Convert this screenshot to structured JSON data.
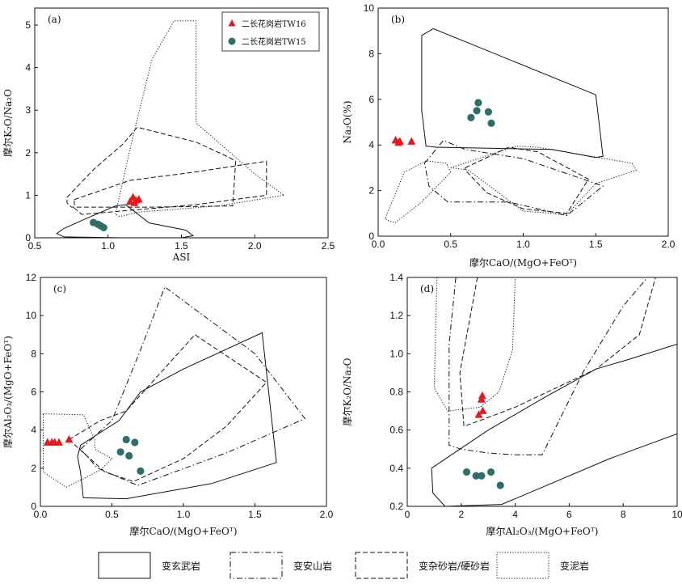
{
  "chart_data": [
    {
      "type": "scatter",
      "panel": "(a)",
      "xlabel": "ASI",
      "ylabel": "摩尔K₂O/Na₂O",
      "xlim": [
        0.5,
        2.5
      ],
      "ylim": [
        0,
        5.4
      ],
      "xticks": [
        0.5,
        1.0,
        1.5,
        2.0,
        2.5
      ],
      "xtick_labels": [
        "0.5",
        "1.0",
        "1.5",
        "2.0",
        "2.5"
      ],
      "yticks": [
        0,
        1,
        2,
        3,
        4,
        5
      ],
      "ytick_labels": [
        "0",
        "1",
        "2",
        "3",
        "4",
        "5"
      ],
      "legend": [
        {
          "label": "二长花岗岩TW16",
          "marker": "triangle",
          "color": "#e8161d"
        },
        {
          "label": "二长花岗岩TW15",
          "marker": "circle",
          "color": "#2e6f6b"
        }
      ],
      "legend_position": "top-right",
      "series": [
        {
          "name": "二长花岗岩TW16",
          "marker": "triangle",
          "points": [
            [
              1.15,
              0.85
            ],
            [
              1.17,
              0.95
            ],
            [
              1.19,
              0.88
            ],
            [
              1.21,
              0.9
            ],
            [
              1.18,
              0.82
            ]
          ]
        },
        {
          "name": "二长花岗岩TW15",
          "marker": "circle",
          "points": [
            [
              0.9,
              0.36
            ],
            [
              0.93,
              0.32
            ],
            [
              0.95,
              0.28
            ],
            [
              0.97,
              0.24
            ]
          ]
        }
      ],
      "fields": [
        {
          "style": "solid",
          "points": [
            [
              0.65,
              0.1
            ],
            [
              0.7,
              0.22
            ],
            [
              0.85,
              0.45
            ],
            [
              1.05,
              0.75
            ],
            [
              1.12,
              0.78
            ],
            [
              1.28,
              0.35
            ],
            [
              1.53,
              0.18
            ],
            [
              1.58,
              0.05
            ],
            [
              1.5,
              0.0
            ],
            [
              1.1,
              0.0
            ],
            [
              0.7,
              0.02
            ]
          ]
        },
        {
          "style": "dashed",
          "points": [
            [
              0.72,
              0.95
            ],
            [
              0.9,
              1.6
            ],
            [
              1.1,
              2.2
            ],
            [
              1.2,
              2.6
            ],
            [
              1.6,
              2.25
            ],
            [
              1.82,
              1.9
            ],
            [
              1.87,
              1.8
            ],
            [
              1.85,
              0.75
            ],
            [
              1.3,
              0.72
            ],
            [
              0.75,
              0.72
            ],
            [
              0.72,
              0.82
            ]
          ]
        },
        {
          "style": "dashed",
          "points": [
            [
              0.77,
              0.9
            ],
            [
              1.15,
              1.35
            ],
            [
              1.6,
              1.55
            ],
            [
              2.08,
              1.8
            ],
            [
              2.08,
              1.0
            ],
            [
              1.6,
              0.78
            ],
            [
              0.82,
              0.55
            ],
            [
              0.77,
              0.7
            ]
          ]
        },
        {
          "style": "dotted",
          "points": [
            [
              1.05,
              0.55
            ],
            [
              1.15,
              2.1
            ],
            [
              1.3,
              4.2
            ],
            [
              1.45,
              5.1
            ],
            [
              1.6,
              5.1
            ],
            [
              1.6,
              2.7
            ],
            [
              2.0,
              1.5
            ],
            [
              2.2,
              1.0
            ],
            [
              1.75,
              0.75
            ],
            [
              1.2,
              0.6
            ],
            [
              1.08,
              0.5
            ]
          ]
        }
      ]
    },
    {
      "type": "scatter",
      "panel": "(b)",
      "xlabel": "摩尔CaO/(MgO+FeOᵀ)",
      "ylabel": "Na₂O(%)",
      "xlim": [
        0,
        2.0
      ],
      "ylim": [
        0,
        10
      ],
      "xticks": [
        0,
        0.5,
        1.0,
        1.5,
        2.0
      ],
      "xtick_labels": [
        "0.0",
        "0.5",
        "1.0",
        "1.5",
        "2.0"
      ],
      "yticks": [
        0,
        2,
        4,
        6,
        8,
        10
      ],
      "ytick_labels": [
        "0",
        "2",
        "4",
        "6",
        "8",
        "10"
      ],
      "series": [
        {
          "name": "二长花岗岩TW16",
          "marker": "triangle",
          "points": [
            [
              0.12,
              4.2
            ],
            [
              0.14,
              4.1
            ],
            [
              0.15,
              4.15
            ],
            [
              0.23,
              4.15
            ]
          ]
        },
        {
          "name": "二长花岗岩TW15",
          "marker": "circle",
          "points": [
            [
              0.64,
              5.2
            ],
            [
              0.68,
              5.5
            ],
            [
              0.69,
              5.85
            ],
            [
              0.76,
              5.45
            ],
            [
              0.78,
              4.95
            ]
          ]
        }
      ],
      "fields": [
        {
          "style": "solid",
          "points": [
            [
              0.3,
              8.8
            ],
            [
              0.38,
              9.1
            ],
            [
              1.5,
              6.2
            ],
            [
              1.55,
              3.5
            ],
            [
              1.5,
              3.45
            ],
            [
              1.2,
              3.8
            ],
            [
              0.4,
              3.9
            ],
            [
              0.33,
              3.95
            ],
            [
              0.3,
              5.5
            ]
          ]
        },
        {
          "style": "dashdot",
          "points": [
            [
              0.32,
              3.2
            ],
            [
              0.45,
              4.2
            ],
            [
              0.6,
              3.8
            ],
            [
              1.0,
              3.4
            ],
            [
              1.55,
              2.2
            ],
            [
              1.3,
              0.9
            ],
            [
              0.9,
              1.5
            ],
            [
              0.48,
              1.5
            ],
            [
              0.35,
              2.2
            ]
          ]
        },
        {
          "style": "dashed",
          "points": [
            [
              0.6,
              3.0
            ],
            [
              0.9,
              3.9
            ],
            [
              1.1,
              3.7
            ],
            [
              1.45,
              2.5
            ],
            [
              1.3,
              1.0
            ],
            [
              1.0,
              1.2
            ],
            [
              0.75,
              1.9
            ],
            [
              0.6,
              2.9
            ]
          ]
        },
        {
          "style": "dotted",
          "points": [
            [
              0.05,
              0.8
            ],
            [
              0.18,
              2.8
            ],
            [
              0.33,
              3.3
            ],
            [
              0.47,
              3.2
            ],
            [
              0.5,
              2.8
            ],
            [
              0.3,
              1.5
            ],
            [
              0.12,
              0.6
            ],
            [
              0.06,
              0.7
            ]
          ]
        },
        {
          "style": "dotted",
          "points": [
            [
              0.5,
              3.0
            ],
            [
              0.95,
              3.95
            ],
            [
              1.1,
              3.9
            ],
            [
              1.75,
              3.2
            ],
            [
              1.78,
              2.9
            ],
            [
              1.5,
              2.3
            ],
            [
              1.3,
              0.95
            ],
            [
              1.0,
              1.1
            ],
            [
              0.62,
              2.9
            ]
          ]
        }
      ]
    },
    {
      "type": "scatter",
      "panel": "(c)",
      "xlabel": "摩尔CaO/(MgO+FeOᵀ)",
      "ylabel": "摩尔Al₂O₃/(MgO+FeOᵀ)",
      "xlim": [
        0,
        2.0
      ],
      "ylim": [
        0,
        12
      ],
      "xticks": [
        0,
        0.5,
        1.0,
        1.5,
        2.0
      ],
      "xtick_labels": [
        "0.0",
        "0.5",
        "1.0",
        "1.5",
        "2.0"
      ],
      "yticks": [
        0,
        2,
        4,
        6,
        8,
        10,
        12
      ],
      "ytick_labels": [
        "0",
        "2",
        "4",
        "6",
        "8",
        "10",
        "12"
      ],
      "series": [
        {
          "name": "二长花岗岩TW16",
          "marker": "triangle",
          "points": [
            [
              0.05,
              3.35
            ],
            [
              0.08,
              3.35
            ],
            [
              0.1,
              3.35
            ],
            [
              0.13,
              3.35
            ],
            [
              0.2,
              3.5
            ]
          ]
        },
        {
          "name": "二长花岗岩TW15",
          "marker": "circle",
          "points": [
            [
              0.56,
              2.85
            ],
            [
              0.6,
              3.5
            ],
            [
              0.62,
              2.65
            ],
            [
              0.66,
              3.35
            ],
            [
              0.7,
              1.85
            ]
          ]
        }
      ],
      "fields": [
        {
          "style": "solid",
          "points": [
            [
              0.26,
              2.6
            ],
            [
              0.28,
              3.2
            ],
            [
              0.55,
              4.5
            ],
            [
              0.7,
              6.0
            ],
            [
              1.0,
              7.2
            ],
            [
              1.55,
              9.1
            ],
            [
              1.65,
              2.3
            ],
            [
              1.2,
              1.2
            ],
            [
              0.6,
              0.4
            ],
            [
              0.3,
              0.45
            ],
            [
              0.28,
              1.8
            ]
          ]
        },
        {
          "style": "dashdot",
          "points": [
            [
              0.28,
              3.0
            ],
            [
              0.5,
              4.5
            ],
            [
              0.7,
              8.2
            ],
            [
              0.87,
              11.5
            ],
            [
              1.5,
              8.0
            ],
            [
              1.85,
              4.6
            ],
            [
              1.3,
              2.8
            ],
            [
              0.68,
              1.1
            ],
            [
              0.4,
              2.0
            ]
          ]
        },
        {
          "style": "dashed",
          "points": [
            [
              0.2,
              3.5
            ],
            [
              0.42,
              4.5
            ],
            [
              0.6,
              5.0
            ],
            [
              1.08,
              9.0
            ],
            [
              1.58,
              6.5
            ],
            [
              1.3,
              4.2
            ],
            [
              1.0,
              2.5
            ],
            [
              0.65,
              1.3
            ],
            [
              0.45,
              1.8
            ]
          ]
        },
        {
          "style": "dotted",
          "points": [
            [
              0.02,
              4.85
            ],
            [
              0.3,
              4.8
            ],
            [
              0.38,
              3.5
            ],
            [
              0.38,
              3.0
            ],
            [
              0.5,
              2.5
            ],
            [
              0.42,
              1.9
            ],
            [
              0.18,
              1.0
            ],
            [
              0.02,
              1.8
            ]
          ]
        }
      ]
    },
    {
      "type": "scatter",
      "panel": "(d)",
      "xlabel": "摩尔Al₂O₃/(MgO+FeOᵀ)",
      "ylabel": "摩尔K₂O/Na₂O",
      "xlim": [
        0,
        10
      ],
      "ylim": [
        0.2,
        1.4
      ],
      "xticks": [
        0,
        2,
        4,
        6,
        8,
        10
      ],
      "xtick_labels": [
        "0",
        "2",
        "4",
        "6",
        "8",
        "10"
      ],
      "yticks": [
        0.2,
        0.4,
        0.6,
        0.8,
        1.0,
        1.2,
        1.4
      ],
      "ytick_labels": [
        "0.2",
        "0.4",
        "0.6",
        "0.8",
        "1.0",
        "1.2",
        "1.4"
      ],
      "series": [
        {
          "name": "二长花岗岩TW16",
          "marker": "triangle",
          "points": [
            [
              2.65,
              0.68
            ],
            [
              2.8,
              0.7
            ],
            [
              2.75,
              0.76
            ],
            [
              2.78,
              0.78
            ]
          ]
        },
        {
          "name": "二长花岗岩TW15",
          "marker": "circle",
          "points": [
            [
              2.2,
              0.38
            ],
            [
              2.55,
              0.36
            ],
            [
              2.75,
              0.36
            ],
            [
              3.1,
              0.38
            ],
            [
              3.45,
              0.31
            ]
          ]
        }
      ],
      "fields": [
        {
          "style": "solid",
          "points": [
            [
              0.9,
              0.4
            ],
            [
              3.0,
              0.6
            ],
            [
              5.2,
              0.78
            ],
            [
              7.0,
              0.92
            ],
            [
              8.2,
              0.97
            ],
            [
              10.0,
              1.05
            ]
          ]
        },
        {
          "style": "solid",
          "points": [
            [
              0.9,
              0.4
            ],
            [
              0.95,
              0.27
            ],
            [
              1.4,
              0.2
            ],
            [
              3.5,
              0.21
            ],
            [
              5.0,
              0.3
            ],
            [
              7.5,
              0.45
            ],
            [
              10.0,
              0.58
            ]
          ]
        },
        {
          "style": "dashdot",
          "points": [
            [
              1.8,
              1.4
            ],
            [
              1.55,
              1.05
            ],
            [
              1.55,
              0.68
            ],
            [
              1.55,
              0.52
            ],
            [
              2.0,
              0.5
            ],
            [
              3.0,
              0.48
            ],
            [
              4.0,
              0.47
            ],
            [
              5.0,
              0.47
            ],
            [
              6.5,
              0.9
            ],
            [
              8.0,
              1.25
            ],
            [
              8.9,
              1.4
            ]
          ]
        },
        {
          "style": "dashed",
          "points": [
            [
              2.6,
              1.4
            ],
            [
              1.95,
              0.9
            ],
            [
              2.1,
              0.62
            ],
            [
              2.7,
              0.65
            ],
            [
              4.0,
              0.72
            ],
            [
              5.5,
              0.82
            ],
            [
              7.0,
              0.92
            ],
            [
              8.6,
              1.1
            ],
            [
              9.2,
              1.4
            ]
          ]
        },
        {
          "style": "dotted",
          "points": [
            [
              1.1,
              1.4
            ],
            [
              1.0,
              0.82
            ],
            [
              1.5,
              0.7
            ],
            [
              2.7,
              0.72
            ],
            [
              3.4,
              0.8
            ],
            [
              3.9,
              1.02
            ],
            [
              4.0,
              1.4
            ]
          ]
        }
      ]
    }
  ],
  "legend_bottom": [
    {
      "label": "变玄武岩",
      "style": "solid"
    },
    {
      "label": "变安山岩",
      "style": "dashdot"
    },
    {
      "label": "变杂砂岩/硬砂岩",
      "style": "dashed"
    },
    {
      "label": "变泥岩",
      "style": "dotted"
    }
  ],
  "colors": {
    "triangle": "#e8161d",
    "circle": "#2e6f6b",
    "field": "#111111"
  }
}
